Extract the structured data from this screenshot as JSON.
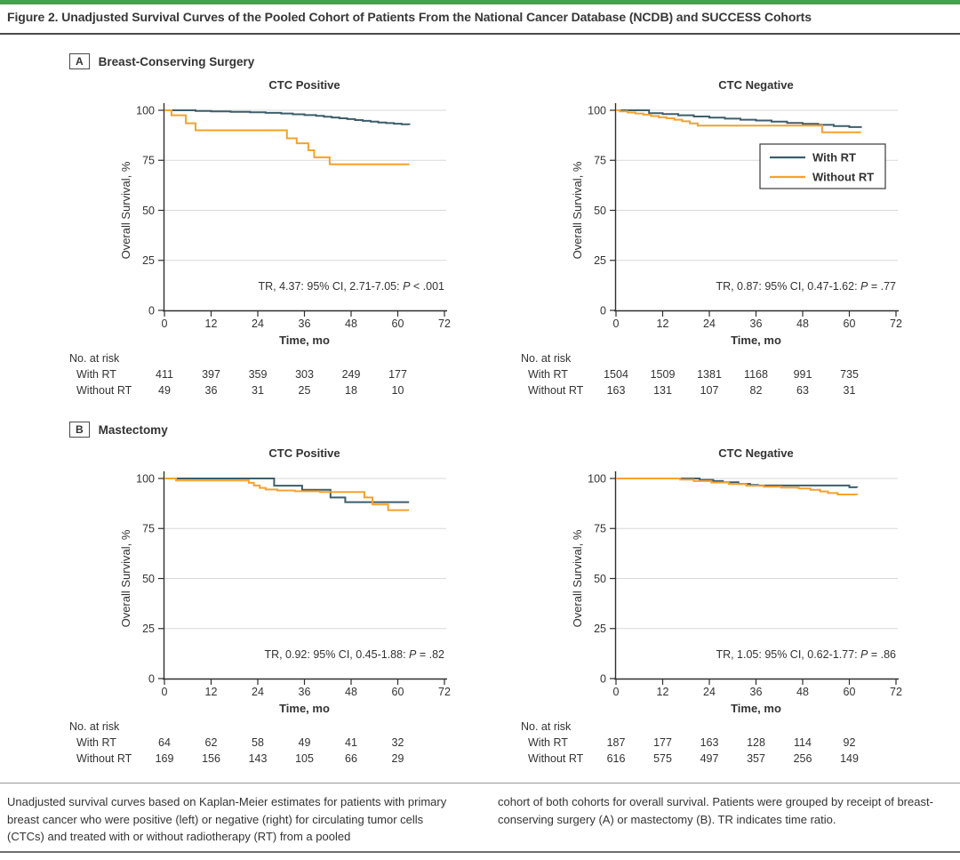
{
  "figure": {
    "title": "Figure 2. Unadjusted Survival Curves of the Pooled Cohort of Patients From the National Cancer Database (NCDB) and SUCCESS Cohorts",
    "top_bar_color": "#46a14a",
    "rule_color": "#4a4a4a"
  },
  "colors": {
    "with_rt": "#3c5e6b",
    "without_rt": "#f5a12f",
    "grid": "#d9d9d9",
    "axis": "#2f2f2f",
    "text": "#333333"
  },
  "caption": {
    "left": "Unadjusted survival curves based on Kaplan-Meier estimates for patients with primary breast cancer who were positive (left) or negative (right) for circulating tumor cells (CTCs) and treated with or without radiotherapy (RT) from a pooled",
    "right": "cohort of both cohorts for overall survival. Patients were grouped by receipt of breast-conserving surgery (A) or mastectomy (B). TR indicates time ratio."
  },
  "chart_data": [
    {
      "type": "line",
      "panel": "A",
      "panel_label": "Breast-Conserving Surgery",
      "title": "CTC Positive",
      "xlabel": "Time, mo",
      "ylabel": "Overall Survival, %",
      "xlim": [
        0,
        72
      ],
      "ylim": [
        0,
        100
      ],
      "xticks": [
        0,
        12,
        24,
        36,
        48,
        60,
        72
      ],
      "yticks": [
        0,
        25,
        50,
        75,
        100
      ],
      "grid": true,
      "legend_inside": false,
      "annotation": {
        "prefix": "TR, 4.37: 95% CI, 2.71-7.05: ",
        "p": "P",
        "suffix": " < .001"
      },
      "series": [
        {
          "name": "With RT",
          "color": "#3c5e6b",
          "step": true,
          "points": [
            [
              0,
              100
            ],
            [
              8,
              99.7
            ],
            [
              12,
              99.4
            ],
            [
              17,
              99.2
            ],
            [
              22,
              99
            ],
            [
              26,
              98.7
            ],
            [
              30,
              98.4
            ],
            [
              33,
              98
            ],
            [
              36,
              97.6
            ],
            [
              39,
              97.2
            ],
            [
              41,
              96.8
            ],
            [
              43,
              96.4
            ],
            [
              45,
              96
            ],
            [
              47,
              95.6
            ],
            [
              49,
              95.1
            ],
            [
              51,
              94.7
            ],
            [
              53,
              94.3
            ],
            [
              55,
              93.9
            ],
            [
              57,
              93.6
            ],
            [
              59,
              93.3
            ],
            [
              61,
              93
            ],
            [
              63,
              92.8
            ]
          ]
        },
        {
          "name": "Without RT",
          "color": "#f5a12f",
          "step": true,
          "points": [
            [
              0,
              100
            ],
            [
              1.8,
              97.5
            ],
            [
              5.5,
              93.5
            ],
            [
              8,
              90
            ],
            [
              31.5,
              86
            ],
            [
              34,
              83.5
            ],
            [
              37,
              80
            ],
            [
              38.5,
              76.5
            ],
            [
              42.5,
              73
            ],
            [
              63,
              73
            ]
          ]
        }
      ],
      "at_risk": {
        "header": "No. at risk",
        "times": [
          0,
          12,
          24,
          36,
          48,
          60
        ],
        "rows": [
          {
            "name": "With RT",
            "values": [
              411,
              397,
              359,
              303,
              249,
              177
            ]
          },
          {
            "name": "Without RT",
            "values": [
              49,
              36,
              31,
              25,
              18,
              10
            ]
          }
        ]
      }
    },
    {
      "type": "line",
      "panel": "A",
      "panel_label": "Breast-Conserving Surgery",
      "title": "CTC Negative",
      "xlabel": "Time, mo",
      "ylabel": "Overall Survival, %",
      "xlim": [
        0,
        72
      ],
      "ylim": [
        0,
        100
      ],
      "xticks": [
        0,
        12,
        24,
        36,
        48,
        60,
        72
      ],
      "yticks": [
        0,
        25,
        50,
        75,
        100
      ],
      "grid": true,
      "legend_inside": true,
      "legend_labels": [
        "With RT",
        "Without RT"
      ],
      "annotation": {
        "prefix": "TR, 0.87: 95% CI, 0.47-1.62: ",
        "p": "P",
        "suffix": " = .77"
      },
      "series": [
        {
          "name": "With RT",
          "color": "#3c5e6b",
          "step": true,
          "points": [
            [
              0,
              100
            ],
            [
              8.5,
              98.6
            ],
            [
              12,
              98.1
            ],
            [
              16,
              97.5
            ],
            [
              20,
              96.9
            ],
            [
              24,
              96.3
            ],
            [
              28,
              95.8
            ],
            [
              32,
              95.3
            ],
            [
              36,
              94.9
            ],
            [
              40,
              94.3
            ],
            [
              44,
              93.7
            ],
            [
              48,
              93.2
            ],
            [
              52,
              92.7
            ],
            [
              56,
              92.1
            ],
            [
              60,
              91.6
            ],
            [
              63,
              91.2
            ]
          ]
        },
        {
          "name": "Without RT",
          "color": "#f5a12f",
          "step": true,
          "points": [
            [
              0,
              100
            ],
            [
              1,
              99.4
            ],
            [
              3,
              98.9
            ],
            [
              5,
              98.4
            ],
            [
              7,
              97.8
            ],
            [
              9,
              97.1
            ],
            [
              11,
              96.5
            ],
            [
              13,
              96
            ],
            [
              15,
              95.3
            ],
            [
              17,
              94.5
            ],
            [
              19,
              93.4
            ],
            [
              21,
              92.3
            ],
            [
              52.5,
              92.3
            ],
            [
              53,
              89
            ],
            [
              63,
              89
            ]
          ]
        }
      ],
      "at_risk": {
        "header": "No. at risk",
        "times": [
          0,
          12,
          24,
          36,
          48,
          60
        ],
        "rows": [
          {
            "name": "With RT",
            "values": [
              1504,
              1509,
              1381,
              1168,
              991,
              735
            ]
          },
          {
            "name": "Without RT",
            "values": [
              163,
              131,
              107,
              82,
              63,
              31
            ]
          }
        ]
      }
    },
    {
      "type": "line",
      "panel": "B",
      "panel_label": "Mastectomy",
      "title": "CTC Positive",
      "xlabel": "Time, mo",
      "ylabel": "Overall Survival, %",
      "xlim": [
        0,
        72
      ],
      "ylim": [
        0,
        100
      ],
      "xticks": [
        0,
        12,
        24,
        36,
        48,
        60,
        72
      ],
      "yticks": [
        0,
        25,
        50,
        75,
        100
      ],
      "grid": true,
      "legend_inside": false,
      "annotation": {
        "prefix": "TR, 0.92: 95% CI, 0.45-1.88: ",
        "p": "P",
        "suffix": " = .82"
      },
      "series": [
        {
          "name": "With RT",
          "color": "#3c5e6b",
          "step": true,
          "points": [
            [
              0,
              100
            ],
            [
              28.2,
              96.4
            ],
            [
              35.4,
              94.3
            ],
            [
              42.7,
              90.5
            ],
            [
              46.5,
              88.2
            ],
            [
              62.9,
              88.2
            ]
          ]
        },
        {
          "name": "Without RT",
          "color": "#f5a12f",
          "step": true,
          "points": [
            [
              0,
              100
            ],
            [
              3,
              99
            ],
            [
              21.7,
              97.8
            ],
            [
              23,
              96.5
            ],
            [
              24.5,
              95.3
            ],
            [
              26,
              94.5
            ],
            [
              29,
              94
            ],
            [
              33.5,
              93.6
            ],
            [
              40,
              93.2
            ],
            [
              51.4,
              90.5
            ],
            [
              53.5,
              87
            ],
            [
              57.5,
              84.2
            ],
            [
              62.9,
              84.2
            ]
          ]
        }
      ],
      "at_risk": {
        "header": "No. at risk",
        "times": [
          0,
          12,
          24,
          36,
          48,
          60
        ],
        "rows": [
          {
            "name": "With RT",
            "values": [
              64,
              62,
              58,
              49,
              41,
              32
            ]
          },
          {
            "name": "Without RT",
            "values": [
              169,
              156,
              143,
              105,
              66,
              29
            ]
          }
        ]
      }
    },
    {
      "type": "line",
      "panel": "B",
      "panel_label": "Mastectomy",
      "title": "CTC Negative",
      "xlabel": "Time, mo",
      "ylabel": "Overall Survival, %",
      "xlim": [
        0,
        72
      ],
      "ylim": [
        0,
        100
      ],
      "xticks": [
        0,
        12,
        24,
        36,
        48,
        60,
        72
      ],
      "yticks": [
        0,
        25,
        50,
        75,
        100
      ],
      "grid": true,
      "legend_inside": false,
      "annotation": {
        "prefix": "TR, 1.05: 95% CI, 0.62-1.77: ",
        "p": "P",
        "suffix": " = .86"
      },
      "series": [
        {
          "name": "With RT",
          "color": "#3c5e6b",
          "step": true,
          "points": [
            [
              0,
              100
            ],
            [
              21.5,
              99.3
            ],
            [
              25,
              98.7
            ],
            [
              27.5,
              98.1
            ],
            [
              31.5,
              97.3
            ],
            [
              34.5,
              96.8
            ],
            [
              36.5,
              96.5
            ],
            [
              59.5,
              96.5
            ],
            [
              60,
              95.6
            ],
            [
              62,
              95.5
            ]
          ]
        },
        {
          "name": "Without RT",
          "color": "#f5a12f",
          "step": true,
          "points": [
            [
              0,
              100
            ],
            [
              16.5,
              99.4
            ],
            [
              20,
              98.7
            ],
            [
              24.5,
              98
            ],
            [
              29,
              97.2
            ],
            [
              33.5,
              96.4
            ],
            [
              38,
              95.9
            ],
            [
              42.5,
              95.4
            ],
            [
              47,
              95
            ],
            [
              50,
              94.3
            ],
            [
              52.5,
              93.5
            ],
            [
              54.5,
              92.7
            ],
            [
              57,
              92
            ],
            [
              62,
              91.9
            ]
          ]
        }
      ],
      "at_risk": {
        "header": "No. at risk",
        "times": [
          0,
          12,
          24,
          36,
          48,
          60
        ],
        "rows": [
          {
            "name": "With RT",
            "values": [
              187,
              177,
              163,
              128,
              114,
              92
            ]
          },
          {
            "name": "Without RT",
            "values": [
              616,
              575,
              497,
              357,
              256,
              149
            ]
          }
        ]
      }
    }
  ]
}
